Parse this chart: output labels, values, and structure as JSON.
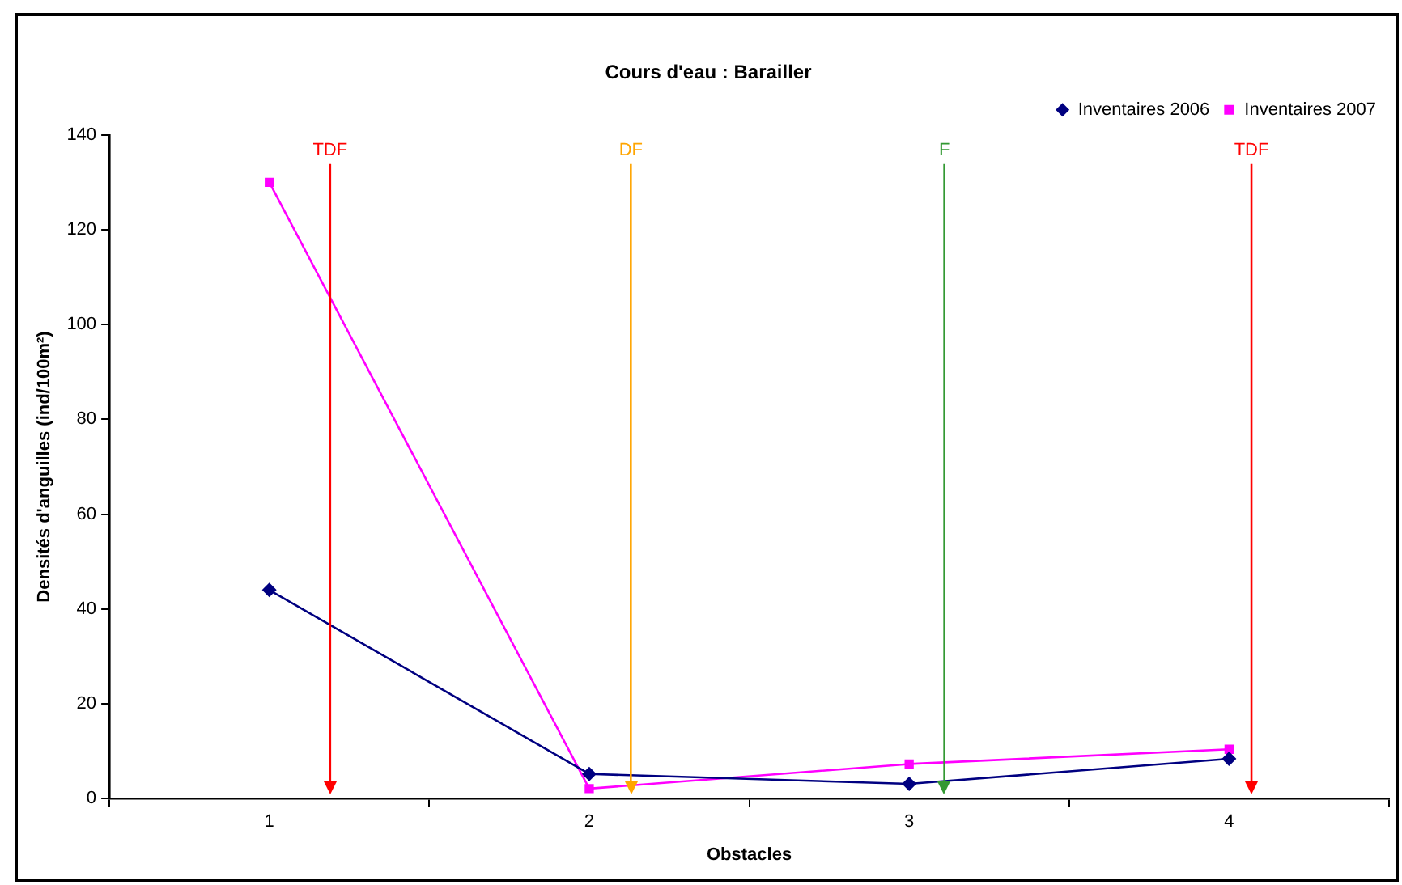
{
  "chart_data": {
    "type": "line",
    "title": "Cours d'eau : Barailler",
    "xlabel": "Obstacles",
    "ylabel": "Densités d'anguilles (ind/100m²)",
    "x": [
      1,
      2,
      3,
      4
    ],
    "xlim": [
      0.5,
      4.5
    ],
    "xticks": [
      {
        "value": 0.5,
        "label": null
      },
      1,
      {
        "value": 1.5,
        "label": null
      },
      2,
      {
        "value": 2.5,
        "label": null
      },
      3,
      {
        "value": 3.5,
        "label": null
      },
      4,
      {
        "value": 4.5,
        "label": null
      }
    ],
    "ylim": [
      0,
      140
    ],
    "yticks": [
      0,
      20,
      40,
      60,
      80,
      100,
      120,
      140
    ],
    "grid": false,
    "legend": "top right",
    "series": [
      {
        "name": "Inventaires 2006",
        "color": "#000080",
        "marker": "diamond",
        "values": [
          44,
          5.2,
          3.1,
          8.4
        ]
      },
      {
        "name": "Inventaires 2007",
        "color": "#ff00ff",
        "marker": "square",
        "values": [
          130,
          2.1,
          7.3,
          10.4
        ]
      }
    ],
    "ref_lines": [
      {
        "axis": "x",
        "value": 1.19,
        "label": "TDF",
        "color": "#ff0000"
      },
      {
        "axis": "x",
        "value": 2.13,
        "label": "DF",
        "color": "#ffa500"
      },
      {
        "axis": "x",
        "value": 3.11,
        "label": "F",
        "color": "#339933"
      },
      {
        "axis": "x",
        "value": 4.07,
        "label": "TDF",
        "color": "#ff0000"
      }
    ]
  }
}
